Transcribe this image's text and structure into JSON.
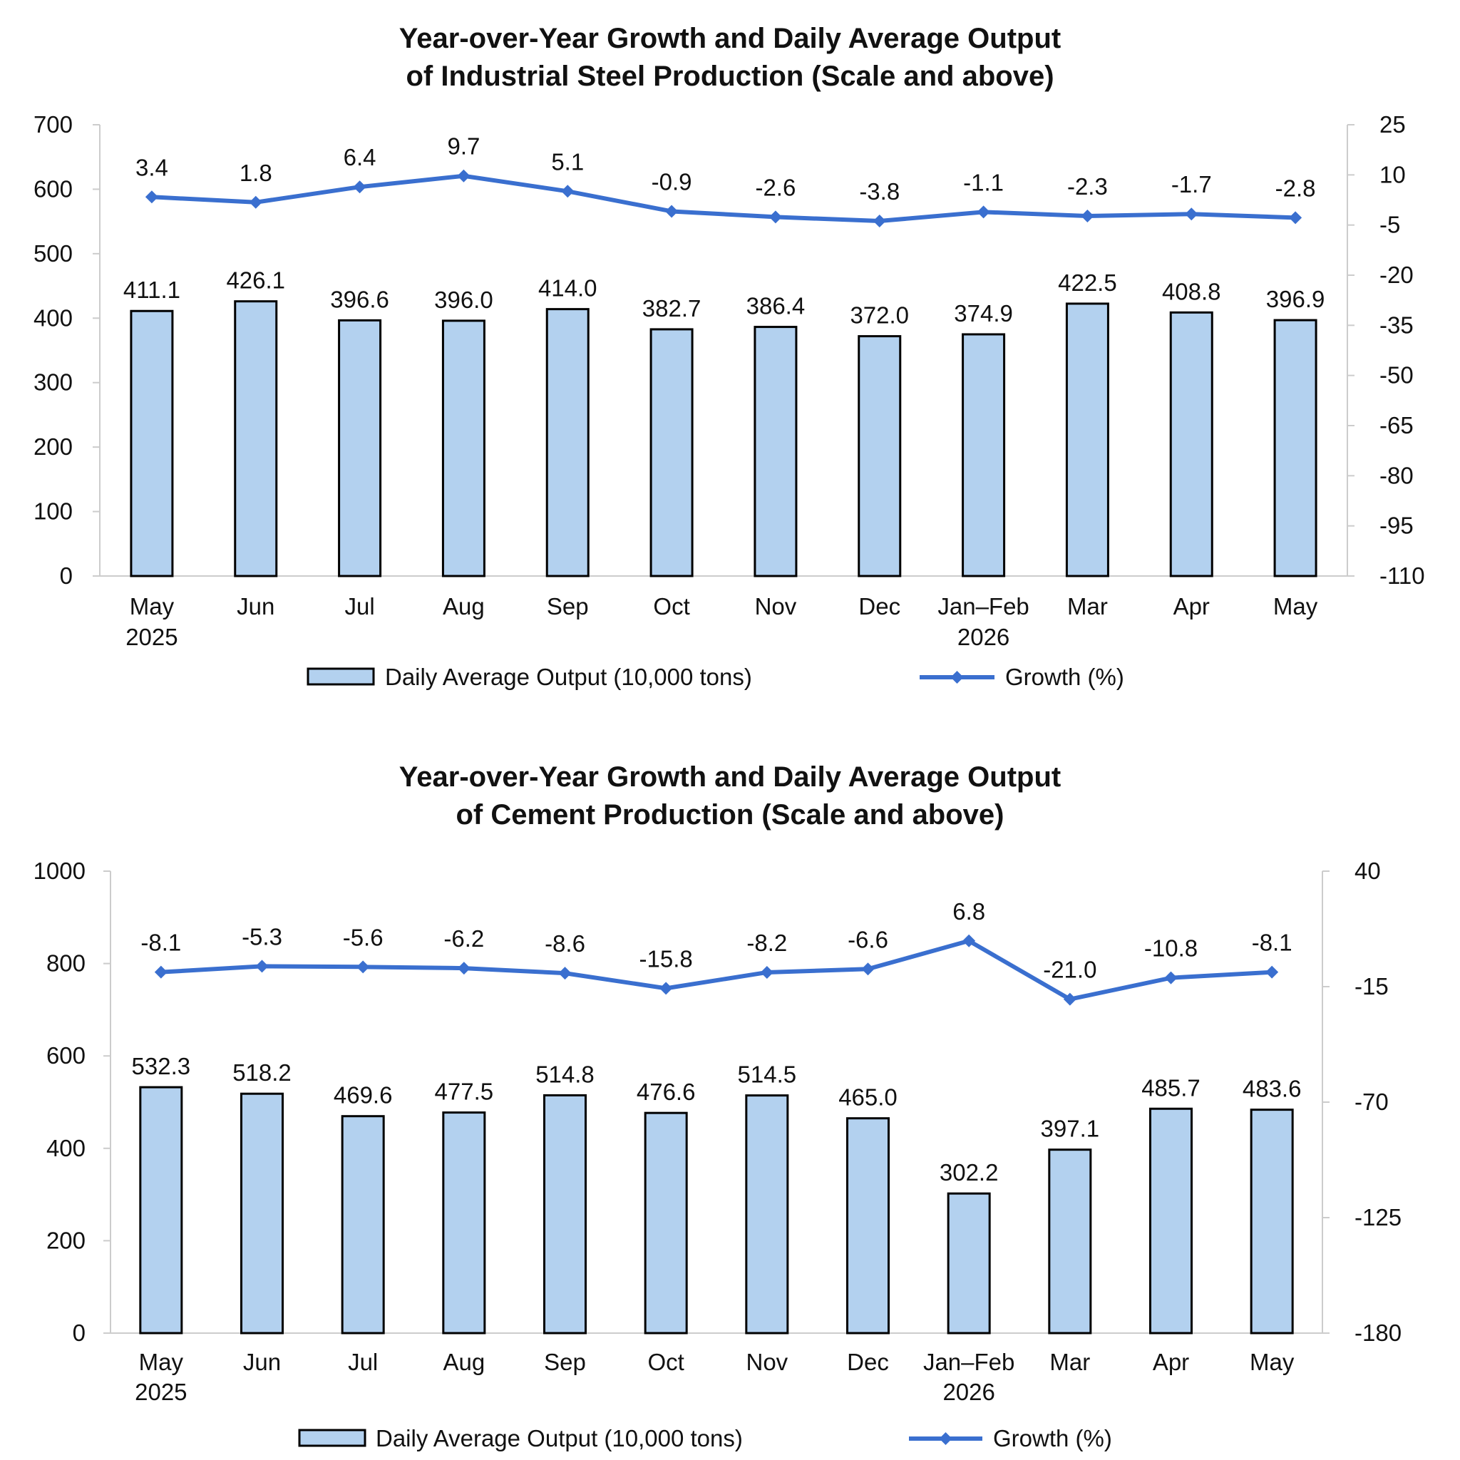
{
  "chart_data": [
    {
      "type": "bar",
      "title_lines": [
        "Year-over-Year Growth and Daily Average Output",
        "of Industrial Steel Production (Scale and above)"
      ],
      "categories": [
        {
          "line1": "May",
          "line2": "2025"
        },
        {
          "line1": "Jun",
          "line2": ""
        },
        {
          "line1": "Jul",
          "line2": ""
        },
        {
          "line1": "Aug",
          "line2": ""
        },
        {
          "line1": "Sep",
          "line2": ""
        },
        {
          "line1": "Oct",
          "line2": ""
        },
        {
          "line1": "Nov",
          "line2": ""
        },
        {
          "line1": "Dec",
          "line2": ""
        },
        {
          "line1": "Jan–Feb",
          "line2": "2026"
        },
        {
          "line1": "Mar",
          "line2": ""
        },
        {
          "line1": "Apr",
          "line2": ""
        },
        {
          "line1": "May",
          "line2": ""
        }
      ],
      "series": [
        {
          "name": "Daily Average Output (10,000 tons)",
          "type": "bar",
          "axis": "left",
          "values": [
            411.1,
            426.1,
            396.6,
            396.0,
            414.0,
            382.7,
            386.4,
            372.0,
            374.9,
            422.5,
            408.8,
            396.9
          ],
          "labels": [
            "411.1",
            "426.1",
            "396.6",
            "396.0",
            "414.0",
            "382.7",
            "386.4",
            "372.0",
            "374.9",
            "422.5",
            "408.8",
            "396.9"
          ]
        },
        {
          "name": "Growth (%)",
          "type": "line",
          "axis": "right",
          "values": [
            3.4,
            1.8,
            6.4,
            9.7,
            5.1,
            -0.9,
            -2.6,
            -3.8,
            -1.1,
            -2.3,
            -1.7,
            -2.8
          ],
          "labels": [
            "3.4",
            "1.8",
            "6.4",
            "9.7",
            "5.1",
            "-0.9",
            "-2.6",
            "-3.8",
            "-1.1",
            "-2.3",
            "-1.7",
            "-2.8"
          ]
        }
      ],
      "y_left": {
        "min": 0,
        "max": 700,
        "ticks": [
          "0",
          "100",
          "200",
          "300",
          "400",
          "500",
          "600",
          "700"
        ]
      },
      "y_right": {
        "min": -110,
        "max": 25,
        "ticks": [
          "-110",
          "-95",
          "-80",
          "-65",
          "-50",
          "-35",
          "-20",
          "-5",
          "10",
          "25"
        ]
      },
      "legend_position": "bottom",
      "grid": false,
      "colors": {
        "bar_fill": "#b3d1ef",
        "bar_stroke": "#000000",
        "line": "#3a6fcf",
        "axis": "#cccccc"
      }
    },
    {
      "type": "bar",
      "title_lines": [
        "Year-over-Year Growth and Daily Average Output",
        "of Cement Production (Scale and above)"
      ],
      "categories": [
        {
          "line1": "May",
          "line2": "2025"
        },
        {
          "line1": "Jun",
          "line2": ""
        },
        {
          "line1": "Jul",
          "line2": ""
        },
        {
          "line1": "Aug",
          "line2": ""
        },
        {
          "line1": "Sep",
          "line2": ""
        },
        {
          "line1": "Oct",
          "line2": ""
        },
        {
          "line1": "Nov",
          "line2": ""
        },
        {
          "line1": "Dec",
          "line2": ""
        },
        {
          "line1": "Jan–Feb",
          "line2": "2026"
        },
        {
          "line1": "Mar",
          "line2": ""
        },
        {
          "line1": "Apr",
          "line2": ""
        },
        {
          "line1": "May",
          "line2": ""
        }
      ],
      "series": [
        {
          "name": "Daily Average Output (10,000 tons)",
          "type": "bar",
          "axis": "left",
          "values": [
            532.3,
            518.2,
            469.6,
            477.5,
            514.8,
            476.6,
            514.5,
            465.0,
            302.2,
            397.1,
            485.7,
            483.6
          ],
          "labels": [
            "532.3",
            "518.2",
            "469.6",
            "477.5",
            "514.8",
            "476.6",
            "514.5",
            "465.0",
            "302.2",
            "397.1",
            "485.7",
            "483.6"
          ]
        },
        {
          "name": "Growth (%)",
          "type": "line",
          "axis": "right",
          "values": [
            -8.1,
            -5.3,
            -5.6,
            -6.2,
            -8.6,
            -15.8,
            -8.2,
            -6.6,
            6.8,
            -21.0,
            -10.8,
            -8.1
          ],
          "labels": [
            "-8.1",
            "-5.3",
            "-5.6",
            "-6.2",
            "-8.6",
            "-15.8",
            "-8.2",
            "-6.6",
            "6.8",
            "-21.0",
            "-10.8",
            "-8.1"
          ]
        }
      ],
      "y_left": {
        "min": 0,
        "max": 1000,
        "ticks": [
          "0",
          "200",
          "400",
          "600",
          "800",
          "1000"
        ]
      },
      "y_right": {
        "min": -180,
        "max": 40,
        "ticks": [
          "-180",
          "-125",
          "-70",
          "-15",
          "40"
        ]
      },
      "legend_position": "bottom",
      "grid": false,
      "colors": {
        "bar_fill": "#b3d1ef",
        "bar_stroke": "#000000",
        "line": "#3a6fcf",
        "axis": "#cccccc"
      }
    }
  ]
}
